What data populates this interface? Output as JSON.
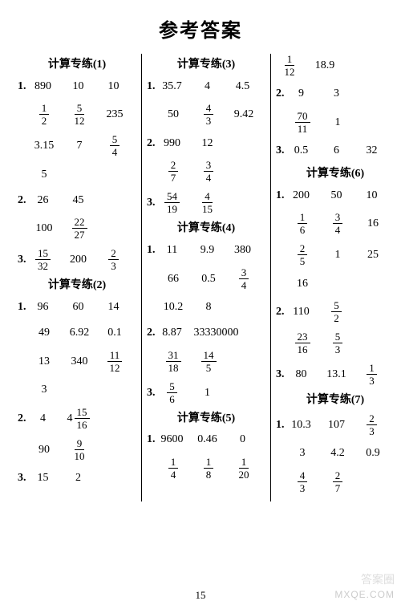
{
  "title": "参考答案",
  "page_number": "15",
  "watermark_top": "答案圈",
  "watermark_bottom": "MXQE.COM",
  "colors": {
    "text": "#000000",
    "background": "#ffffff",
    "divider": "#000000",
    "watermark": "#cccccc"
  },
  "font": {
    "family": "SimSun",
    "title_size": 24,
    "body_size": 14
  },
  "columns": [
    {
      "sections": [
        {
          "title": "计算专练(1)",
          "groups": [
            {
              "q": "1.",
              "rows": [
                [
                  {
                    "t": "890"
                  },
                  {
                    "t": "10"
                  },
                  {
                    "t": "10"
                  }
                ],
                [
                  {
                    "f": [
                      "1",
                      "2"
                    ]
                  },
                  {
                    "f": [
                      "5",
                      "12"
                    ]
                  },
                  {
                    "t": "235"
                  }
                ],
                [
                  {
                    "t": "3.15"
                  },
                  {
                    "t": "7"
                  },
                  {
                    "f": [
                      "5",
                      "4"
                    ]
                  }
                ],
                [
                  {
                    "t": "5"
                  }
                ]
              ]
            },
            {
              "q": "2.",
              "rows": [
                [
                  {
                    "t": "26"
                  },
                  {
                    "t": "45"
                  }
                ],
                [
                  {
                    "t": "100"
                  },
                  {
                    "f": [
                      "22",
                      "27"
                    ]
                  }
                ]
              ]
            },
            {
              "q": "3.",
              "rows": [
                [
                  {
                    "f": [
                      "15",
                      "32"
                    ]
                  },
                  {
                    "t": "200"
                  },
                  {
                    "f": [
                      "2",
                      "3"
                    ]
                  }
                ]
              ]
            }
          ]
        },
        {
          "title": "计算专练(2)",
          "groups": [
            {
              "q": "1.",
              "rows": [
                [
                  {
                    "t": "96"
                  },
                  {
                    "t": "60"
                  },
                  {
                    "t": "14"
                  }
                ],
                [
                  {
                    "t": "49"
                  },
                  {
                    "t": "6.92"
                  },
                  {
                    "t": "0.1"
                  }
                ],
                [
                  {
                    "t": "13"
                  },
                  {
                    "t": "340"
                  },
                  {
                    "f": [
                      "11",
                      "12"
                    ]
                  }
                ],
                [
                  {
                    "t": "3"
                  }
                ]
              ]
            },
            {
              "q": "2.",
              "rows": [
                [
                  {
                    "t": "4"
                  },
                  {
                    "m": [
                      "4",
                      "15",
                      "16"
                    ]
                  }
                ],
                [
                  {
                    "t": "90"
                  },
                  {
                    "f": [
                      "9",
                      "10"
                    ]
                  }
                ]
              ]
            },
            {
              "q": "3.",
              "rows": [
                [
                  {
                    "t": "15"
                  },
                  {
                    "t": "2"
                  }
                ]
              ]
            }
          ]
        }
      ]
    },
    {
      "sections": [
        {
          "title": "计算专练(3)",
          "groups": [
            {
              "q": "1.",
              "rows": [
                [
                  {
                    "t": "35.7"
                  },
                  {
                    "t": "4"
                  },
                  {
                    "t": "4.5"
                  }
                ],
                [
                  {
                    "t": "50"
                  },
                  {
                    "f": [
                      "4",
                      "3"
                    ]
                  },
                  {
                    "t": "9.42"
                  }
                ]
              ]
            },
            {
              "q": "2.",
              "rows": [
                [
                  {
                    "t": "990"
                  },
                  {
                    "t": "12"
                  }
                ],
                [
                  {
                    "f": [
                      "2",
                      "7"
                    ]
                  },
                  {
                    "f": [
                      "3",
                      "4"
                    ]
                  }
                ]
              ]
            },
            {
              "q": "3.",
              "rows": [
                [
                  {
                    "f": [
                      "54",
                      "19"
                    ]
                  },
                  {
                    "f": [
                      "4",
                      "15"
                    ]
                  }
                ]
              ]
            }
          ]
        },
        {
          "title": "计算专练(4)",
          "groups": [
            {
              "q": "1.",
              "rows": [
                [
                  {
                    "t": "11"
                  },
                  {
                    "t": "9.9"
                  },
                  {
                    "t": "380"
                  }
                ],
                [
                  {
                    "t": "66"
                  },
                  {
                    "t": "0.5"
                  },
                  {
                    "f": [
                      "3",
                      "4"
                    ]
                  }
                ],
                [
                  {
                    "t": "10.2"
                  },
                  {
                    "t": "8"
                  }
                ]
              ]
            },
            {
              "q": "2.",
              "rows": [
                [
                  {
                    "t": "8.87"
                  },
                  {
                    "t": "33330000"
                  }
                ],
                [
                  {
                    "f": [
                      "31",
                      "18"
                    ]
                  },
                  {
                    "f": [
                      "14",
                      "5"
                    ]
                  }
                ]
              ]
            },
            {
              "q": "3.",
              "rows": [
                [
                  {
                    "f": [
                      "5",
                      "6"
                    ]
                  },
                  {
                    "t": "1"
                  }
                ]
              ]
            }
          ]
        },
        {
          "title": "计算专练(5)",
          "groups": [
            {
              "q": "1.",
              "rows": [
                [
                  {
                    "t": "9600"
                  },
                  {
                    "t": "0.46"
                  },
                  {
                    "t": "0"
                  }
                ],
                [
                  {
                    "f": [
                      "1",
                      "4"
                    ]
                  },
                  {
                    "f": [
                      "1",
                      "8"
                    ]
                  },
                  {
                    "f": [
                      "1",
                      "20"
                    ]
                  }
                ]
              ]
            }
          ]
        }
      ]
    },
    {
      "sections": [
        {
          "title": "",
          "groups": [
            {
              "q": "",
              "rows": [
                [
                  {
                    "f": [
                      "1",
                      "12"
                    ]
                  },
                  {
                    "t": "18.9"
                  }
                ]
              ]
            },
            {
              "q": "2.",
              "rows": [
                [
                  {
                    "t": "9"
                  },
                  {
                    "t": "3"
                  }
                ],
                [
                  {
                    "f": [
                      "70",
                      "11"
                    ]
                  },
                  {
                    "t": "1"
                  }
                ]
              ]
            },
            {
              "q": "3.",
              "rows": [
                [
                  {
                    "t": "0.5"
                  },
                  {
                    "t": "6"
                  },
                  {
                    "t": "32"
                  }
                ]
              ]
            }
          ]
        },
        {
          "title": "计算专练(6)",
          "groups": [
            {
              "q": "1.",
              "rows": [
                [
                  {
                    "t": "200"
                  },
                  {
                    "t": "50"
                  },
                  {
                    "t": "10"
                  }
                ],
                [
                  {
                    "f": [
                      "1",
                      "6"
                    ]
                  },
                  {
                    "f": [
                      "3",
                      "4"
                    ]
                  },
                  {
                    "t": "16"
                  }
                ],
                [
                  {
                    "f": [
                      "2",
                      "5"
                    ]
                  },
                  {
                    "t": "1"
                  },
                  {
                    "t": "25"
                  }
                ],
                [
                  {
                    "t": "16"
                  }
                ]
              ]
            },
            {
              "q": "2.",
              "rows": [
                [
                  {
                    "t": "110"
                  },
                  {
                    "f": [
                      "5",
                      "2"
                    ]
                  }
                ],
                [
                  {
                    "f": [
                      "23",
                      "16"
                    ]
                  },
                  {
                    "f": [
                      "5",
                      "3"
                    ]
                  }
                ]
              ]
            },
            {
              "q": "3.",
              "rows": [
                [
                  {
                    "t": "80"
                  },
                  {
                    "t": "13.1"
                  },
                  {
                    "f": [
                      "1",
                      "3"
                    ]
                  }
                ]
              ]
            }
          ]
        },
        {
          "title": "计算专练(7)",
          "groups": [
            {
              "q": "1.",
              "rows": [
                [
                  {
                    "t": "10.3"
                  },
                  {
                    "t": "107"
                  },
                  {
                    "f": [
                      "2",
                      "3"
                    ]
                  }
                ],
                [
                  {
                    "t": "3"
                  },
                  {
                    "t": "4.2"
                  },
                  {
                    "t": "0.9"
                  }
                ],
                [
                  {
                    "f": [
                      "4",
                      "3"
                    ]
                  },
                  {
                    "f": [
                      "2",
                      "7"
                    ]
                  }
                ]
              ]
            }
          ]
        }
      ]
    }
  ]
}
